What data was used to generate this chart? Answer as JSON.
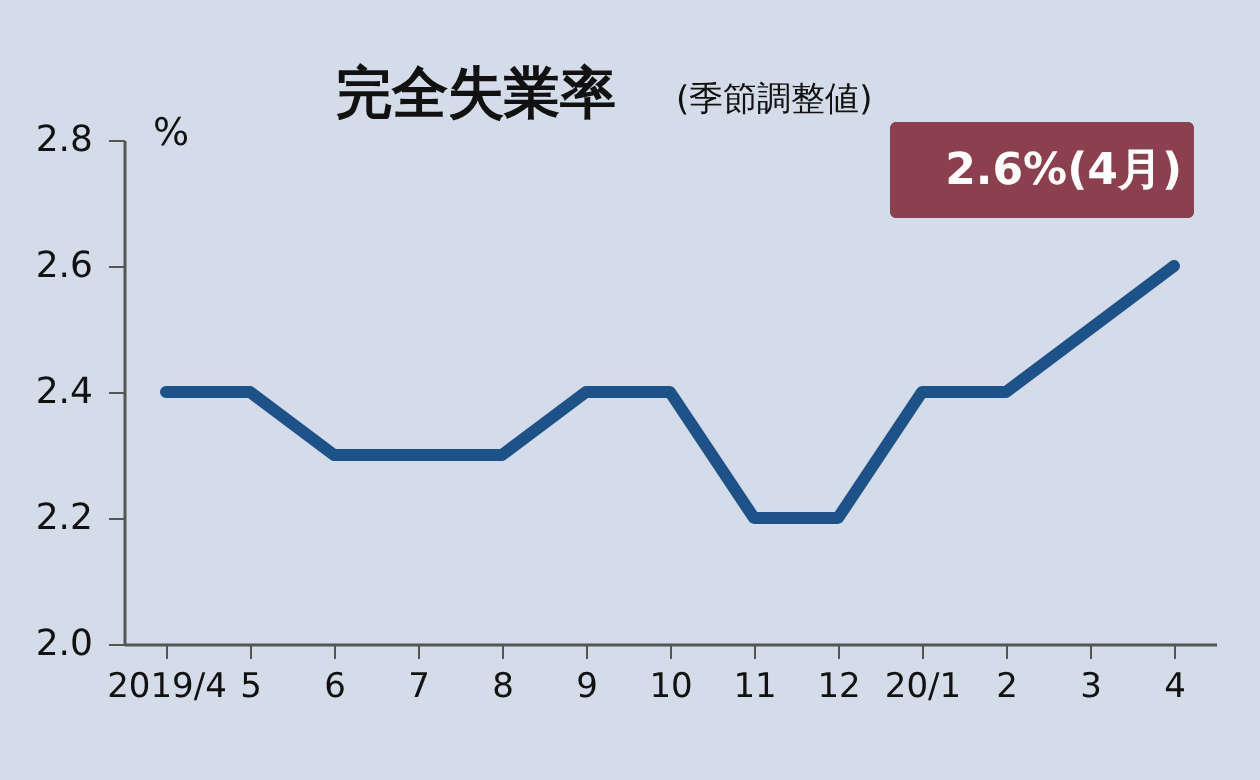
{
  "chart_data": {
    "type": "line",
    "title": "完全失業率",
    "subtitle": "(季節調整値)",
    "ylabel": "%",
    "categories": [
      "2019/4",
      "5",
      "6",
      "7",
      "8",
      "9",
      "10",
      "11",
      "12",
      "20/1",
      "2",
      "3",
      "4"
    ],
    "series": [
      {
        "color": "#1c5288",
        "values": [
          2.4,
          2.4,
          2.3,
          2.3,
          2.3,
          2.4,
          2.4,
          2.2,
          2.2,
          2.4,
          2.4,
          2.5,
          2.6
        ]
      }
    ],
    "ylim": [
      2.0,
      2.8
    ],
    "yticks": [
      {
        "value": 2.0,
        "label": "2.0"
      },
      2.2,
      2.4,
      2.6,
      2.8
    ],
    "grid": false,
    "marker": "none",
    "line_style": "solid",
    "annotations": [
      {
        "text": "2.6%(4月)",
        "x": "4",
        "y": 2.6
      }
    ]
  }
}
